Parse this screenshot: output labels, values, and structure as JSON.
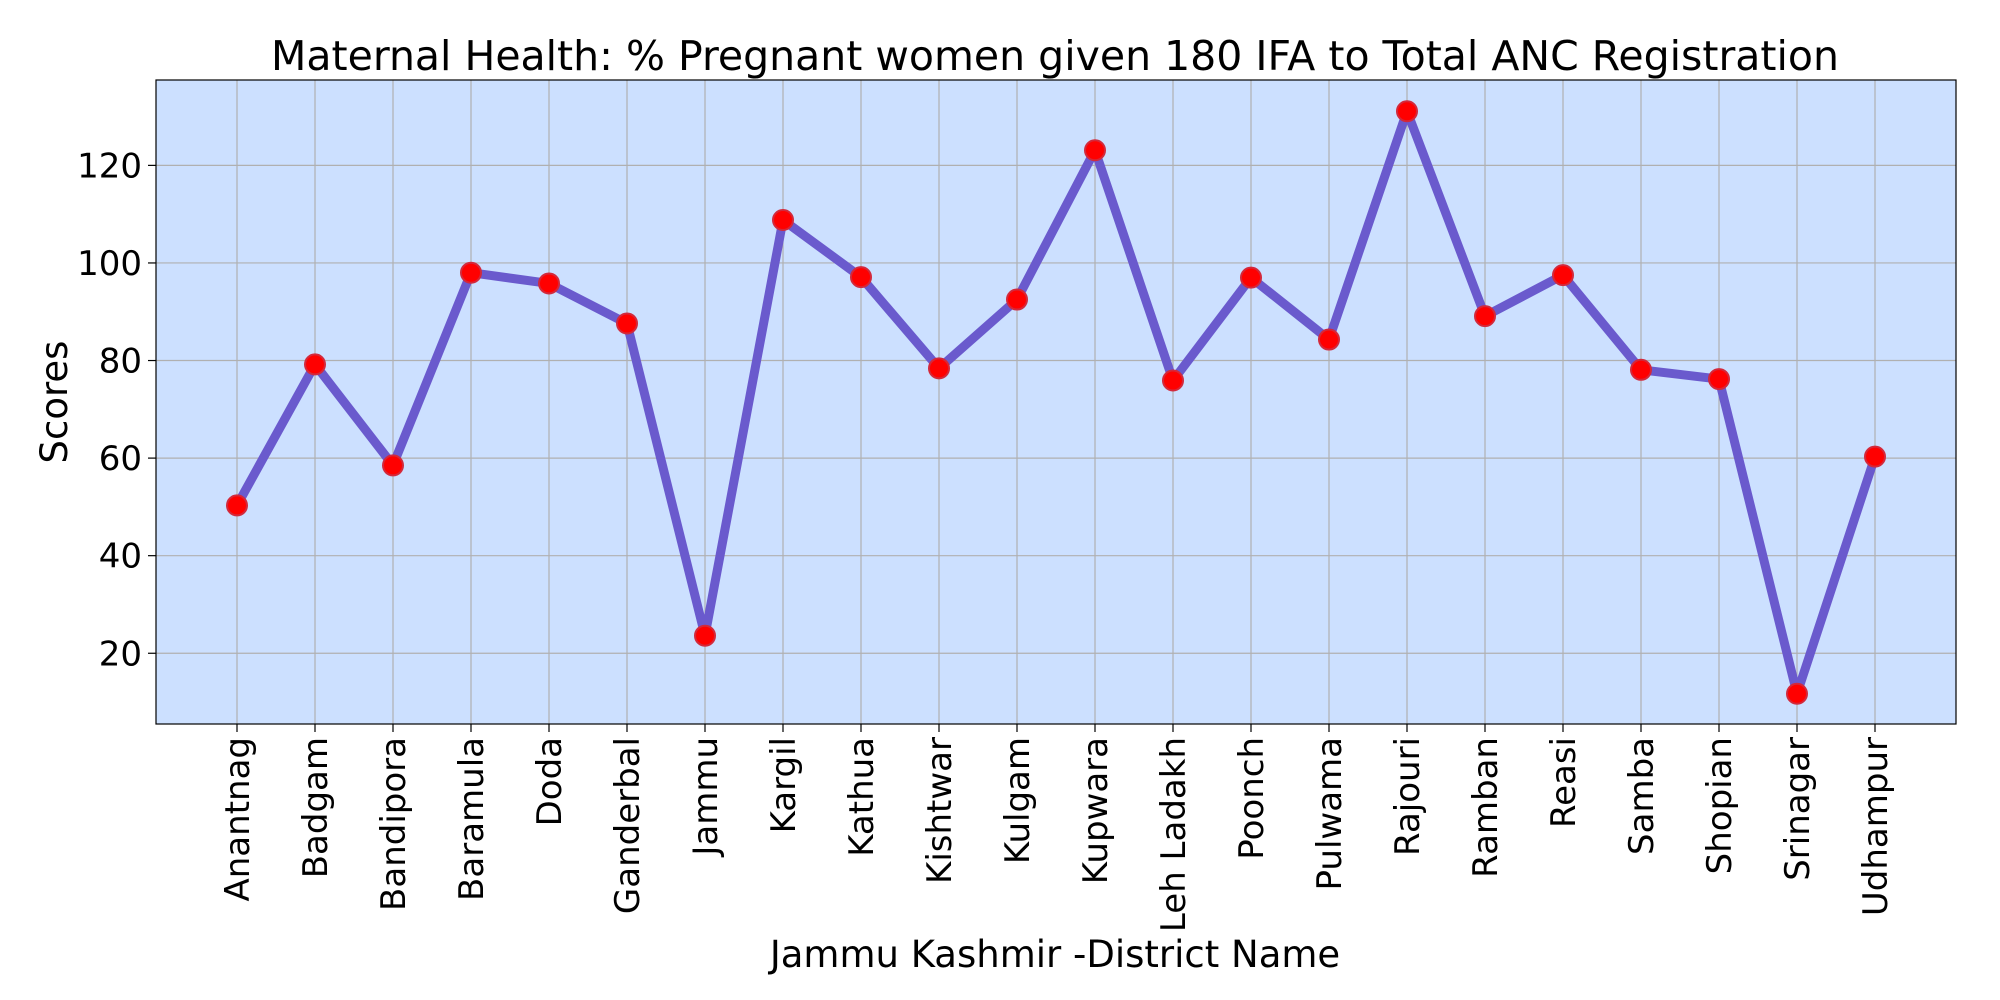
{
  "chart_data": {
    "type": "line",
    "title": "Maternal Health:  % Pregnant women given 180 IFA to Total ANC Registration",
    "xlabel": "Jammu Kashmir -District Name",
    "ylabel": "Scores",
    "ylim": [
      5.5,
      137.5
    ],
    "yticks": [
      20,
      40,
      60,
      80,
      100,
      120
    ],
    "grid": true,
    "categories": [
      "Anantnag",
      "Badgam",
      "Bandipora",
      "Baramula",
      "Doda",
      "Ganderbal",
      "Jammu",
      "Kargil",
      "Kathua",
      "Kishtwar",
      "Kulgam",
      "Kupwara",
      "Leh Ladakh",
      "Poonch",
      "Pulwama",
      "Rajouri",
      "Ramban",
      "Reasi",
      "Samba",
      "Shopian",
      "Srinagar",
      "Udhampur"
    ],
    "series": [
      {
        "values": [
          50.3,
          79.2,
          58.5,
          98.0,
          95.8,
          87.6,
          23.6,
          108.8,
          97.1,
          78.4,
          92.5,
          123.1,
          75.9,
          97.0,
          84.3,
          131.1,
          89.1,
          97.5,
          78.1,
          76.2,
          11.7,
          60.3
        ]
      }
    ],
    "colors": {
      "background": "#cce0ff",
      "line": "#6a5acd",
      "marker_fill": "#ff0000",
      "marker_edge": "#d3293b"
    }
  }
}
